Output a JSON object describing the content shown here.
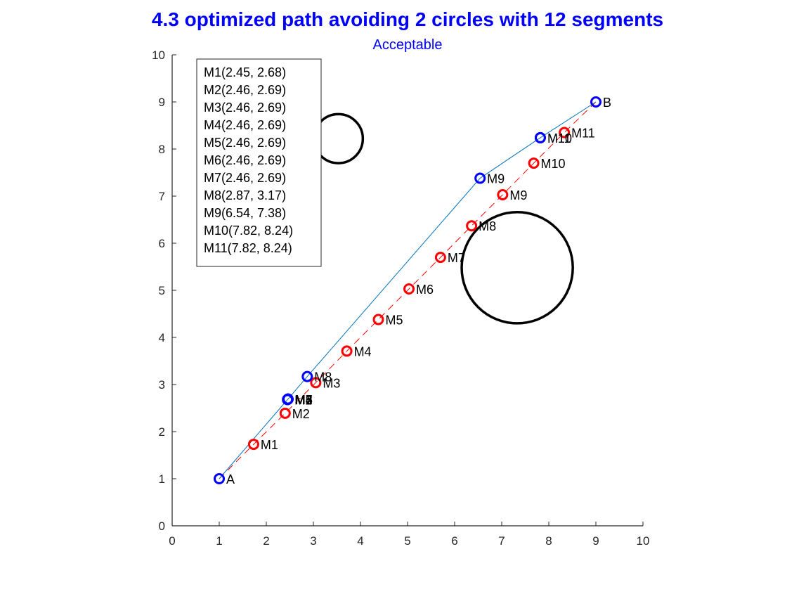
{
  "chart_data": {
    "type": "scatter",
    "title": "4.3 optimized path avoiding 2 circles with 12 segments",
    "subtitle": "Acceptable",
    "xlabel": "",
    "ylabel": "",
    "xlim": [
      0,
      10
    ],
    "ylim": [
      0,
      10
    ],
    "xticks": [
      "0",
      "1",
      "2",
      "3",
      "4",
      "5",
      "6",
      "7",
      "8",
      "9",
      "10"
    ],
    "yticks": [
      "0",
      "1",
      "2",
      "3",
      "4",
      "5",
      "6",
      "7",
      "8",
      "9",
      "10"
    ],
    "grid": false,
    "colors": {
      "title": "#0000ff",
      "optimized": "#0000ff",
      "initial": "#ff0000",
      "path_line": "#0072bd",
      "initial_line": "#ff0000",
      "obstacles": "#000000"
    },
    "obstacles": [
      {
        "cx": 3.53,
        "cy": 8.22,
        "r": 0.52
      },
      {
        "cx": 7.33,
        "cy": 5.48,
        "r": 1.18
      }
    ],
    "initial_points": [
      {
        "label": "M1",
        "x": 1.73,
        "y": 1.73
      },
      {
        "label": "M2",
        "x": 2.4,
        "y": 2.39
      },
      {
        "label": "M3",
        "x": 3.05,
        "y": 3.04
      },
      {
        "label": "M4",
        "x": 3.71,
        "y": 3.71
      },
      {
        "label": "M5",
        "x": 4.38,
        "y": 4.38
      },
      {
        "label": "M6",
        "x": 5.03,
        "y": 5.03
      },
      {
        "label": "M7",
        "x": 5.7,
        "y": 5.7
      },
      {
        "label": "M8",
        "x": 6.36,
        "y": 6.37
      },
      {
        "label": "M9",
        "x": 7.02,
        "y": 7.03
      },
      {
        "label": "M10",
        "x": 7.68,
        "y": 7.7
      },
      {
        "label": "M11",
        "x": 8.33,
        "y": 8.35
      }
    ],
    "endpoints": [
      {
        "label": "A",
        "x": 1,
        "y": 1
      },
      {
        "label": "B",
        "x": 9,
        "y": 9
      }
    ],
    "optimized_points": [
      {
        "label": "M1",
        "x": 2.45,
        "y": 2.68
      },
      {
        "label": "M2",
        "x": 2.46,
        "y": 2.69
      },
      {
        "label": "M3",
        "x": 2.46,
        "y": 2.69
      },
      {
        "label": "M4",
        "x": 2.46,
        "y": 2.69
      },
      {
        "label": "M5",
        "x": 2.46,
        "y": 2.69
      },
      {
        "label": "M6",
        "x": 2.46,
        "y": 2.69
      },
      {
        "label": "M7",
        "x": 2.46,
        "y": 2.69
      },
      {
        "label": "M8",
        "x": 2.87,
        "y": 3.17
      },
      {
        "label": "M9",
        "x": 6.54,
        "y": 7.38
      },
      {
        "label": "M10",
        "x": 7.82,
        "y": 8.24
      },
      {
        "label": "M11",
        "x": 7.82,
        "y": 8.24
      }
    ],
    "legend_lines": [
      "M1(2.45, 2.68)",
      "M2(2.46, 2.69)",
      "M3(2.46, 2.69)",
      "M4(2.46, 2.69)",
      "M5(2.46, 2.69)",
      "M6(2.46, 2.69)",
      "M7(2.46, 2.69)",
      "M8(2.87, 3.17)",
      "M9(6.54, 7.38)",
      "M10(7.82, 8.24)",
      "M11(7.82, 8.24)"
    ]
  }
}
